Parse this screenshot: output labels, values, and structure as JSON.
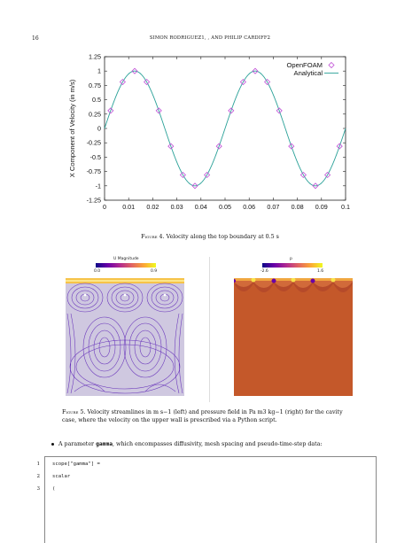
{
  "header": {
    "page_number": "16",
    "authors": "SIMON RODRIGUEZ1, ,   AND PHILIP CARDIFF2"
  },
  "chart_data": {
    "type": "line",
    "xlabel": "X Coordinate (in m)",
    "ylabel": "X Component of Velocity (in m/s)",
    "xlim": [
      0,
      0.1
    ],
    "ylim": [
      -1.25,
      1.25
    ],
    "x_ticks": [
      "0",
      "0.01",
      "0.02",
      "0.03",
      "0.04",
      "0.05",
      "0.06",
      "0.07",
      "0.08",
      "0.09",
      "0.1"
    ],
    "y_ticks": [
      "1.25",
      "1",
      "0.75",
      "0.5",
      "0.25",
      "0",
      "-0.25",
      "-0.5",
      "-0.75",
      "-1",
      "-1.25"
    ],
    "legend_position": "top-right",
    "series": [
      {
        "name": "OpenFOAM",
        "style": "diamond markers",
        "color": "#c04fd6",
        "x": [
          0.0025,
          0.0075,
          0.0125,
          0.0175,
          0.0225,
          0.0275,
          0.0325,
          0.0375,
          0.0425,
          0.0475,
          0.0525,
          0.0575,
          0.0625,
          0.0675,
          0.0725,
          0.0775,
          0.0825,
          0.0875,
          0.0925,
          0.0975
        ],
        "y": [
          0.31,
          0.81,
          1.0,
          0.81,
          0.31,
          -0.31,
          -0.81,
          -1.0,
          -0.81,
          -0.31,
          0.31,
          0.81,
          1.0,
          0.81,
          0.31,
          -0.31,
          -0.81,
          -1.0,
          -0.81,
          -0.31
        ]
      },
      {
        "name": "Analytical",
        "style": "line",
        "color": "#2aa198",
        "function": "sin(2*pi*x/0.05)"
      }
    ]
  },
  "figure4": {
    "label": "Figure 4.",
    "text": "Velocity along the top boundary at 0.5 s"
  },
  "left_plot": {
    "title": "U Magnitude",
    "tick_min": "0.0",
    "tick_max": "0.9"
  },
  "right_plot": {
    "title": "p",
    "tick_min": "-2.6",
    "tick_max": "1.6"
  },
  "figure5": {
    "label": "Figure 5.",
    "text": "Velocity streamlines in m s−1 (left) and pressure field in Pa m3 kg−1 (right) for the cavity case, where the velocity on the upper wall is prescribed via a Python script."
  },
  "bullet": {
    "prefix": "A parameter ",
    "keyword": "gamma",
    "suffix": ", which encompasses diffusivity, mesh spacing and pseudo-time-step data:"
  },
  "code": {
    "lines": [
      {
        "num": "1",
        "text": "scope[\"gamma\"] ="
      },
      {
        "num": "2",
        "text": "scalar"
      },
      {
        "num": "3",
        "text": "("
      }
    ]
  }
}
